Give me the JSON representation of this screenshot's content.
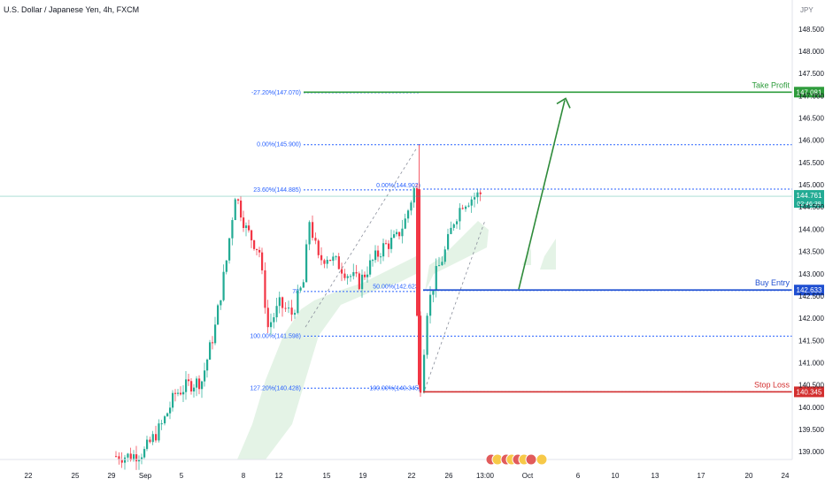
{
  "header": {
    "title": "U.S. Dollar / Japanese Yen, 4h, FXCM",
    "currency": "JPY"
  },
  "chart_data": {
    "type": "candlestick",
    "ylim": [
      138.8,
      149.0
    ],
    "y_ticks": [
      "139.000",
      "139.500",
      "140.000",
      "140.500",
      "141.000",
      "141.500",
      "142.000",
      "142.500",
      "143.000",
      "143.500",
      "144.000",
      "144.500",
      "145.000",
      "145.500",
      "146.000",
      "146.500",
      "147.000",
      "147.500",
      "148.000",
      "148.500"
    ],
    "x_ticks": [
      "22",
      "25",
      "29",
      "Sep",
      "5",
      "8",
      "12",
      "15",
      "19",
      "22",
      "26",
      "13:00",
      "Oct",
      "6",
      "10",
      "13",
      "17",
      "20",
      "24"
    ],
    "fib_levels_left": [
      {
        "label": "-27.20%(147.070)",
        "price": 147.07
      },
      {
        "label": "0.00%(145.900)",
        "price": 145.9
      },
      {
        "label": "23.60%(144.885)",
        "price": 144.885
      },
      {
        "label": "78.",
        "price": 142.6
      },
      {
        "label": "100.00%(141.598)",
        "price": 141.598
      },
      {
        "label": "127.20%(140.428)",
        "price": 140.428
      }
    ],
    "fib_levels_right": [
      {
        "label": "0.00%(144.902)",
        "price": 144.902
      },
      {
        "label": "50.00%(142.623)",
        "price": 142.623
      },
      {
        "label": "100.00%(140.345)",
        "price": 140.345
      }
    ],
    "take_profit": {
      "label": "Take Profit",
      "price": 147.081,
      "price_label": "147.081",
      "color": "#2e9c3c"
    },
    "buy_entry": {
      "label": "Buy Entry",
      "price": 142.633,
      "price_label": "142.633",
      "color": "#1f4fd1"
    },
    "stop_loss": {
      "label": "Stop Loss",
      "price": 140.345,
      "price_label": "140.345",
      "color": "#d32f2f"
    },
    "current_price": {
      "price": 144.761,
      "price_label": "144.761",
      "countdown": "02:46:38",
      "color": "#22ab94"
    },
    "colors": {
      "up": "#22ab94",
      "down": "#f23645",
      "fib": "#2962ff",
      "cloud": "#e4f3e6"
    }
  }
}
